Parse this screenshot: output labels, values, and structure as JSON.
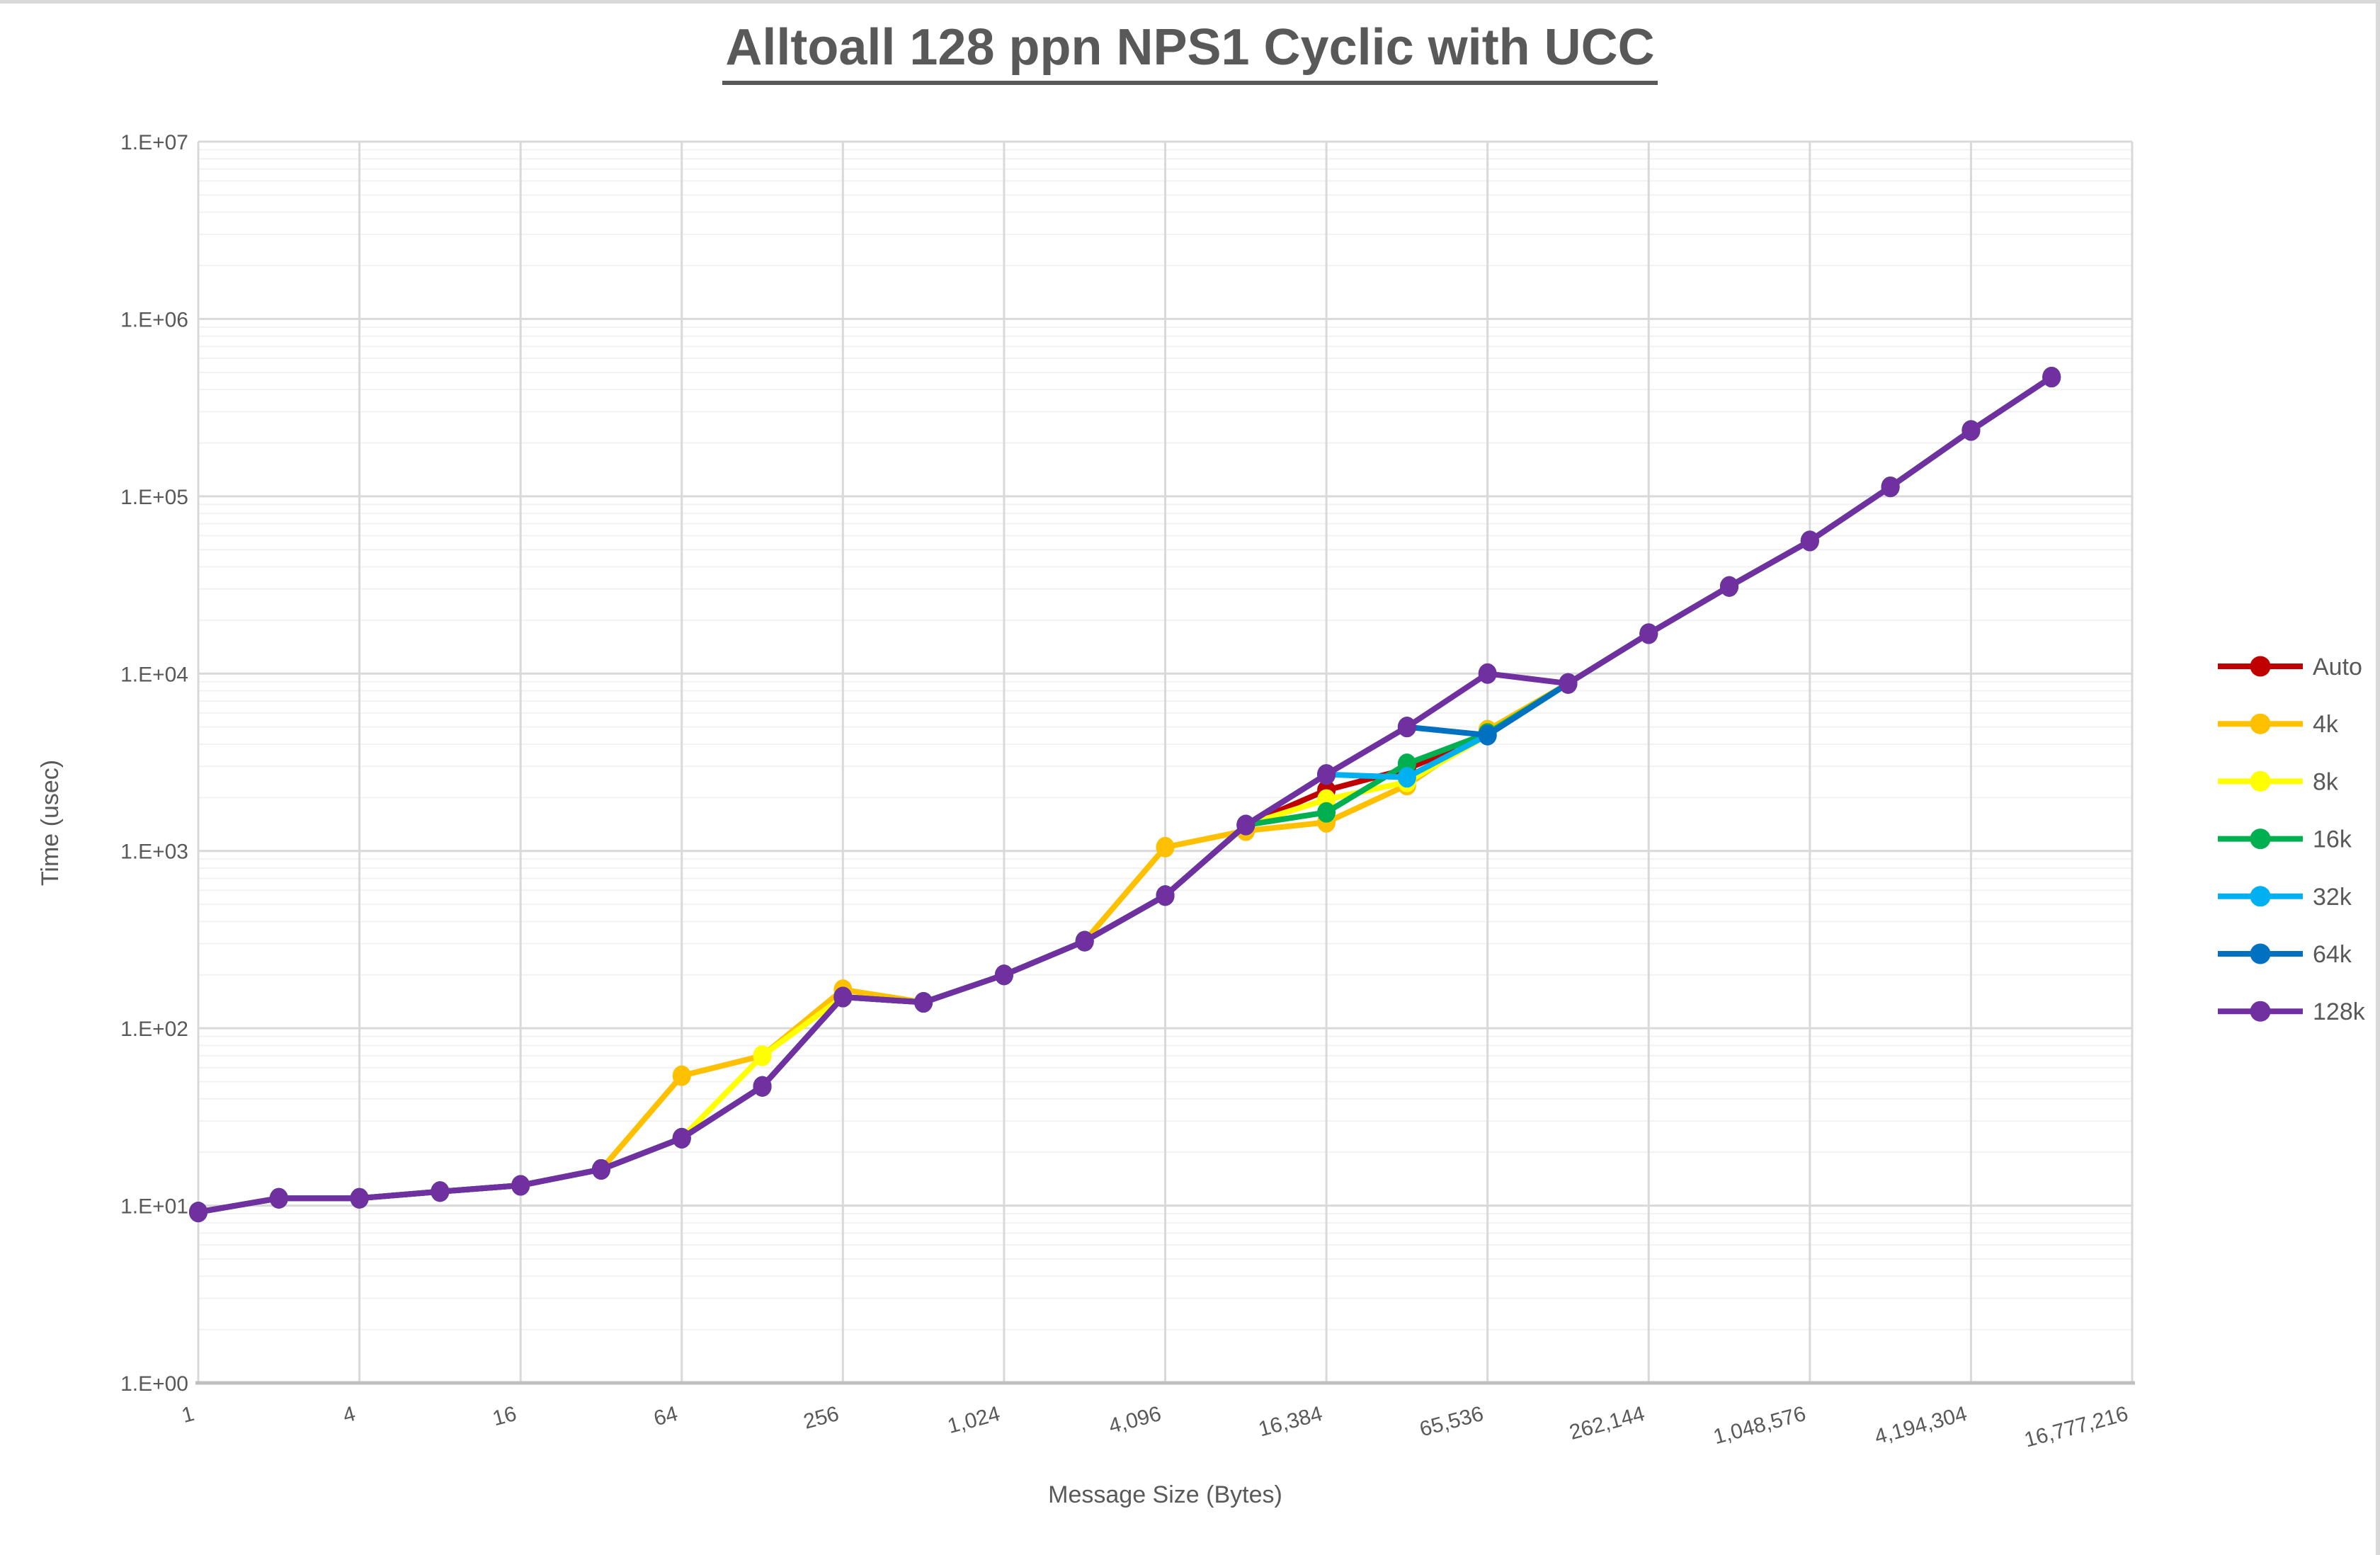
{
  "title": "Alltoall 128 ppn NPS1 Cyclic with UCC",
  "colors": {
    "text": "#595959",
    "grid_major": "#d9d9d9",
    "grid_minor": "#f2f2f2",
    "axis_line": "#bfbfbf",
    "chart_border": "#d9d9d9"
  },
  "chart_data": {
    "type": "line",
    "title": "Alltoall 128 ppn NPS1 Cyclic with UCC",
    "xlabel": "Message Size (Bytes)",
    "ylabel": "Time (usec)",
    "x_scale": "log2-category",
    "y_scale": "log10",
    "ylim": [
      1,
      10000000
    ],
    "xlim": [
      1,
      16777216
    ],
    "grid": "major+minor horizontal, major vertical",
    "legend_position": "right",
    "y_tick_labels": [
      "1.E+00",
      "1.E+01",
      "1.E+02",
      "1.E+03",
      "1.E+04",
      "1.E+05",
      "1.E+06",
      "1.E+07"
    ],
    "x_tick_labels": [
      "1",
      "4",
      "16",
      "64",
      "256",
      "1,024",
      "4,096",
      "16,384",
      "65,536",
      "262,144",
      "1,048,576",
      "4,194,304",
      "16,777,216"
    ],
    "x": [
      1,
      2,
      4,
      8,
      16,
      32,
      64,
      128,
      256,
      512,
      1024,
      2048,
      4096,
      8192,
      16384,
      32768,
      65536,
      131072,
      262144,
      524288,
      1048576,
      2097152,
      4194304,
      8388608
    ],
    "series": [
      {
        "name": "Auto",
        "color": "#C00000",
        "values": [
          9.2,
          11,
          11,
          12,
          13,
          16,
          24,
          47,
          150,
          140,
          200,
          310,
          560,
          1400,
          2200,
          2900,
          4500,
          8800,
          16800,
          31000,
          56000,
          113000,
          235000,
          470000
        ]
      },
      {
        "name": "4k",
        "color": "#FFC000",
        "values": [
          9.2,
          11,
          11,
          12,
          13,
          16,
          54,
          70,
          165,
          140,
          200,
          310,
          1050,
          1300,
          1450,
          2350,
          4800,
          8800,
          16800,
          31000,
          56000,
          113000,
          235000,
          470000
        ]
      },
      {
        "name": "8k",
        "color": "#FFFF00",
        "values": [
          9.2,
          11,
          11,
          12,
          13,
          16,
          24,
          70,
          150,
          140,
          200,
          310,
          560,
          1400,
          1950,
          2450,
          4500,
          8800,
          16800,
          31000,
          56000,
          113000,
          235000,
          470000
        ]
      },
      {
        "name": "16k",
        "color": "#00B050",
        "values": [
          9.2,
          11,
          11,
          12,
          13,
          16,
          24,
          47,
          150,
          140,
          200,
          310,
          560,
          1400,
          1650,
          3100,
          4600,
          8800,
          16800,
          31000,
          56000,
          113000,
          235000,
          470000
        ]
      },
      {
        "name": "32k",
        "color": "#00B0F0",
        "values": [
          9.2,
          11,
          11,
          12,
          13,
          16,
          24,
          47,
          150,
          140,
          200,
          310,
          560,
          1400,
          2700,
          2600,
          4500,
          8800,
          16800,
          31000,
          56000,
          113000,
          235000,
          470000
        ]
      },
      {
        "name": "64k",
        "color": "#0070C0",
        "values": [
          9.2,
          11,
          11,
          12,
          13,
          16,
          24,
          47,
          150,
          140,
          200,
          310,
          560,
          1400,
          2700,
          5000,
          4500,
          8800,
          16800,
          31000,
          56000,
          113000,
          235000,
          470000
        ]
      },
      {
        "name": "128k",
        "color": "#7030A0",
        "values": [
          9.2,
          11,
          11,
          12,
          13,
          16,
          24,
          47,
          150,
          140,
          200,
          310,
          560,
          1400,
          2700,
          5000,
          10000,
          8800,
          16800,
          31000,
          56000,
          113000,
          235000,
          470000
        ]
      }
    ]
  }
}
